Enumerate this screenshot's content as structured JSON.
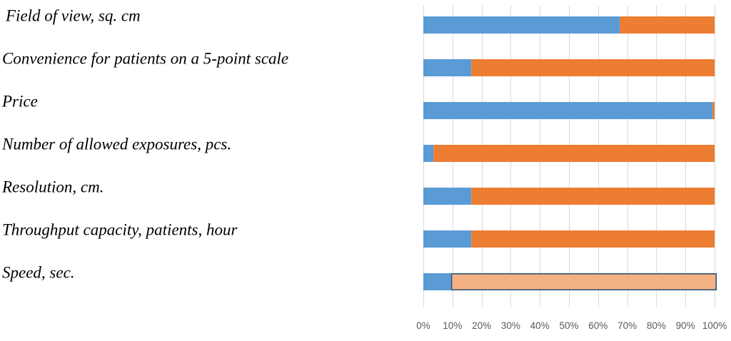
{
  "chart_data": {
    "type": "bar",
    "orientation": "horizontal",
    "stacked": "percent",
    "categories": [
      "Field of view, sq. cm",
      "Convenience for patients on a 5-point scale",
      "Price",
      "Number of allowed exposures, pcs.",
      "Resolution, cm.",
      "Throughput capacity, patients, hour",
      "Speed, sec."
    ],
    "series": [
      {
        "color": "#5b9bd5",
        "values": [
          67.5,
          16.5,
          99.3,
          3.5,
          16.5,
          16.5,
          9.5
        ]
      },
      {
        "color": "#ed7d31",
        "values": [
          32.5,
          83.5,
          0.7,
          96.5,
          83.5,
          83.5,
          90.5
        ]
      }
    ],
    "highlight": {
      "category_index": 6,
      "series_index": 1,
      "fill": "#f4b183",
      "stroke": "#1f4e79"
    },
    "x_ticks": [
      "0%",
      "10%",
      "20%",
      "30%",
      "40%",
      "50%",
      "60%",
      "70%",
      "80%",
      "90%",
      "100%"
    ],
    "xlim": [
      0,
      100
    ],
    "grid": true,
    "legend": "none"
  }
}
